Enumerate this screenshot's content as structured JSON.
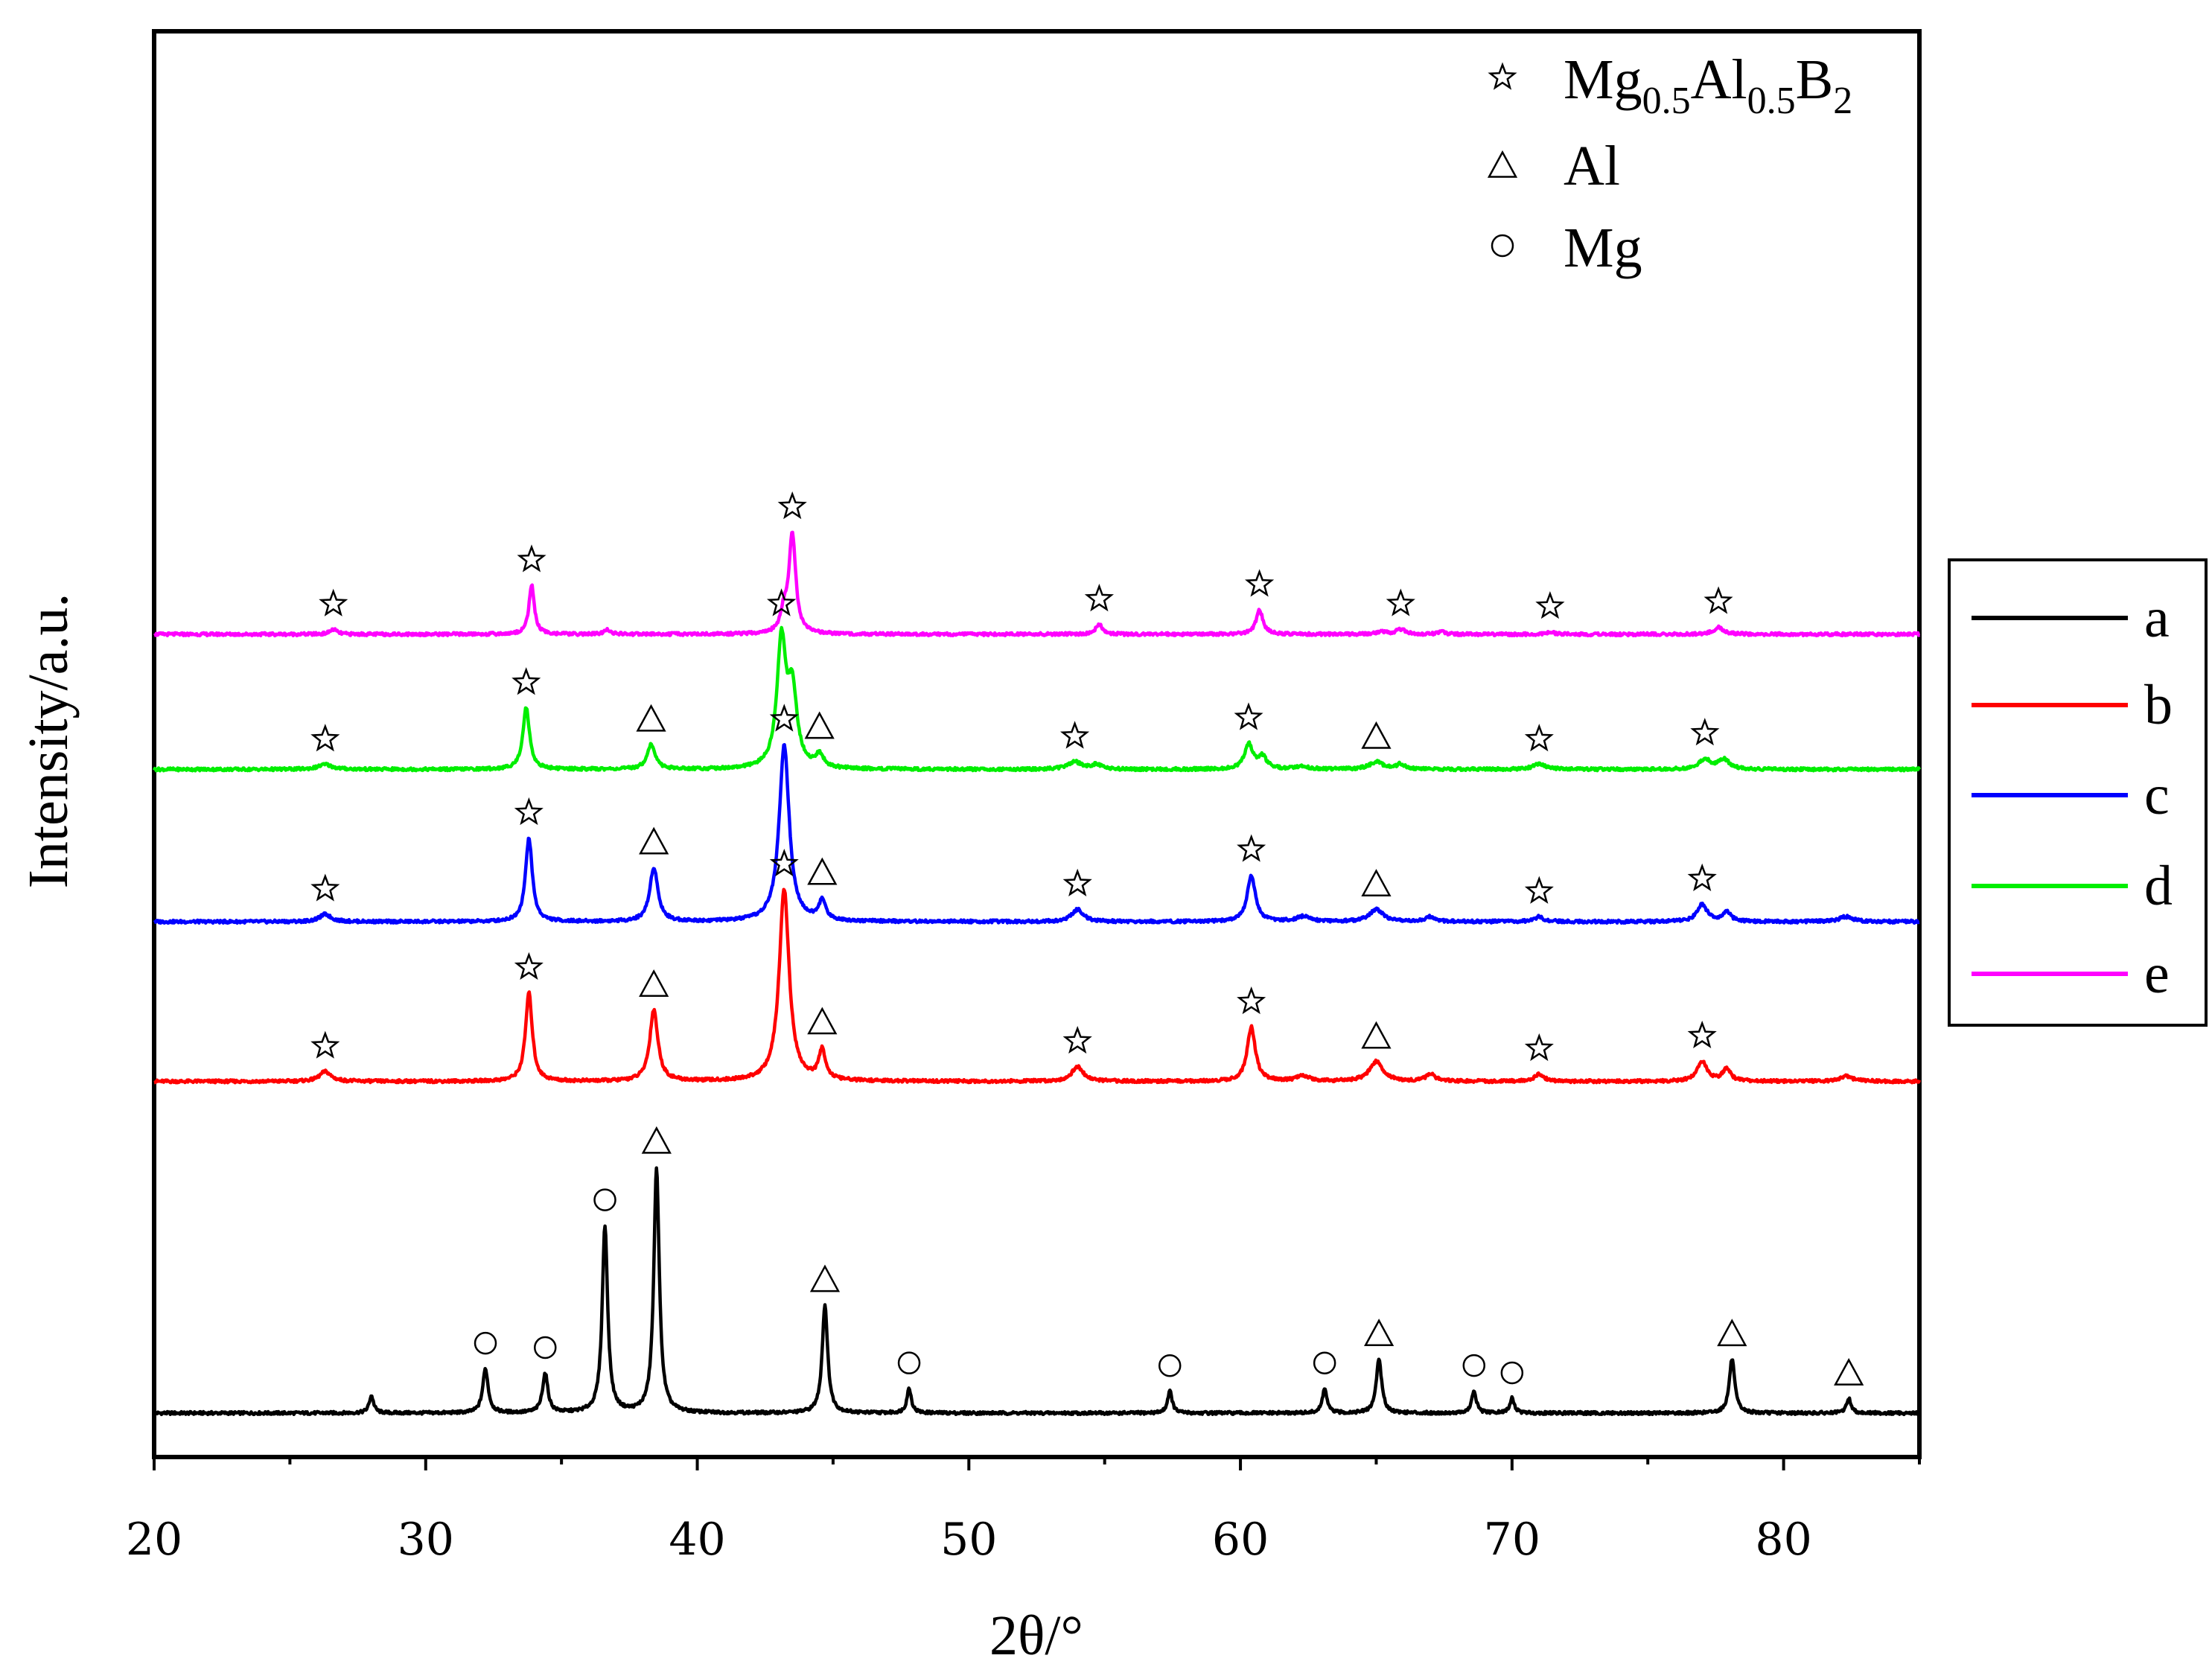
{
  "chart_data": {
    "type": "line",
    "xlabel": "2θ/°",
    "ylabel": "Intensity/a.u.",
    "xlim": [
      20,
      85
    ],
    "xticks": [
      20,
      30,
      40,
      50,
      60,
      70,
      80
    ],
    "grid": false,
    "legend": {
      "placement": "right",
      "entries": [
        {
          "name": "a",
          "color": "#000000"
        },
        {
          "name": "b",
          "color": "#ff0000"
        },
        {
          "name": "c",
          "color": "#0000ff"
        },
        {
          "name": "d",
          "color": "#00ee00"
        },
        {
          "name": "e",
          "color": "#ff00ff"
        }
      ]
    },
    "phase_legend": {
      "placement": "top-right",
      "entries": [
        {
          "symbol": "star",
          "label_main": "Mg",
          "label_sub1": "0.5",
          "label_mid": "Al",
          "label_sub2": "0.5",
          "label_end": "B",
          "label_sub3": "2"
        },
        {
          "symbol": "triangle",
          "label": "Al"
        },
        {
          "symbol": "circle",
          "label": "Mg"
        }
      ]
    },
    "series": [
      {
        "name": "a",
        "color": "#000000",
        "baseline": 0.0,
        "peaks": [
          {
            "x": 28.0,
            "h": 0.07,
            "w": 0.1
          },
          {
            "x": 32.2,
            "h": 0.18,
            "w": 0.12,
            "marker": "circle"
          },
          {
            "x": 34.4,
            "h": 0.16,
            "w": 0.12,
            "marker": "circle"
          },
          {
            "x": 36.6,
            "h": 0.76,
            "w": 0.12,
            "marker": "circle"
          },
          {
            "x": 38.5,
            "h": 1.0,
            "w": 0.12,
            "marker": "triangle"
          },
          {
            "x": 44.7,
            "h": 0.44,
            "w": 0.12,
            "marker": "triangle"
          },
          {
            "x": 47.8,
            "h": 0.1,
            "w": 0.1,
            "marker": "circle"
          },
          {
            "x": 57.4,
            "h": 0.09,
            "w": 0.1,
            "marker": "circle"
          },
          {
            "x": 63.1,
            "h": 0.1,
            "w": 0.1,
            "marker": "circle"
          },
          {
            "x": 65.1,
            "h": 0.22,
            "w": 0.12,
            "marker": "triangle"
          },
          {
            "x": 68.6,
            "h": 0.09,
            "w": 0.1,
            "marker": "circle"
          },
          {
            "x": 70.0,
            "h": 0.06,
            "w": 0.1,
            "marker": "circle"
          },
          {
            "x": 78.1,
            "h": 0.22,
            "w": 0.12,
            "marker": "triangle"
          },
          {
            "x": 82.4,
            "h": 0.06,
            "w": 0.1,
            "marker": "triangle"
          }
        ]
      },
      {
        "name": "b",
        "color": "#ff0000",
        "baseline": 1.35,
        "peaks": [
          {
            "x": 26.3,
            "h": 0.04,
            "w": 0.25,
            "marker": "star"
          },
          {
            "x": 33.8,
            "h": 0.36,
            "w": 0.15,
            "marker": "star"
          },
          {
            "x": 38.4,
            "h": 0.29,
            "w": 0.18,
            "marker": "triangle"
          },
          {
            "x": 43.2,
            "h": 0.78,
            "w": 0.22,
            "marker": "star"
          },
          {
            "x": 44.6,
            "h": 0.12,
            "w": 0.15,
            "marker": "triangle"
          },
          {
            "x": 54.0,
            "h": 0.06,
            "w": 0.25,
            "marker": "star"
          },
          {
            "x": 60.4,
            "h": 0.22,
            "w": 0.18,
            "marker": "star"
          },
          {
            "x": 62.3,
            "h": 0.02,
            "w": 0.3
          },
          {
            "x": 65.0,
            "h": 0.08,
            "w": 0.3,
            "marker": "triangle"
          },
          {
            "x": 67.0,
            "h": 0.03,
            "w": 0.2
          },
          {
            "x": 71.0,
            "h": 0.03,
            "w": 0.2,
            "marker": "star"
          },
          {
            "x": 77.0,
            "h": 0.08,
            "w": 0.22,
            "marker": "star"
          },
          {
            "x": 77.9,
            "h": 0.05,
            "w": 0.18
          },
          {
            "x": 82.3,
            "h": 0.02,
            "w": 0.3
          }
        ]
      },
      {
        "name": "c",
        "color": "#0000ff",
        "baseline": 2.0,
        "peaks": [
          {
            "x": 26.3,
            "h": 0.03,
            "w": 0.25,
            "marker": "star"
          },
          {
            "x": 33.8,
            "h": 0.34,
            "w": 0.15,
            "marker": "star"
          },
          {
            "x": 38.4,
            "h": 0.22,
            "w": 0.18,
            "marker": "triangle"
          },
          {
            "x": 43.2,
            "h": 0.72,
            "w": 0.22,
            "marker": "star"
          },
          {
            "x": 44.6,
            "h": 0.08,
            "w": 0.15,
            "marker": "triangle"
          },
          {
            "x": 54.0,
            "h": 0.05,
            "w": 0.25,
            "marker": "star"
          },
          {
            "x": 60.4,
            "h": 0.19,
            "w": 0.18,
            "marker": "star"
          },
          {
            "x": 62.3,
            "h": 0.02,
            "w": 0.3
          },
          {
            "x": 65.0,
            "h": 0.05,
            "w": 0.3,
            "marker": "triangle"
          },
          {
            "x": 67.0,
            "h": 0.02,
            "w": 0.2
          },
          {
            "x": 71.0,
            "h": 0.02,
            "w": 0.2,
            "marker": "star"
          },
          {
            "x": 77.0,
            "h": 0.07,
            "w": 0.22,
            "marker": "star"
          },
          {
            "x": 77.9,
            "h": 0.04,
            "w": 0.18
          },
          {
            "x": 82.3,
            "h": 0.02,
            "w": 0.3
          }
        ]
      },
      {
        "name": "d",
        "color": "#00ee00",
        "baseline": 2.62,
        "peaks": [
          {
            "x": 26.3,
            "h": 0.02,
            "w": 0.3,
            "marker": "star"
          },
          {
            "x": 33.7,
            "h": 0.25,
            "w": 0.15,
            "marker": "star"
          },
          {
            "x": 38.3,
            "h": 0.1,
            "w": 0.18,
            "marker": "triangle"
          },
          {
            "x": 43.1,
            "h": 0.51,
            "w": 0.2,
            "marker": "star"
          },
          {
            "x": 43.5,
            "h": 0.3,
            "w": 0.2
          },
          {
            "x": 44.5,
            "h": 0.05,
            "w": 0.18,
            "marker": "triangle"
          },
          {
            "x": 53.9,
            "h": 0.03,
            "w": 0.3,
            "marker": "star"
          },
          {
            "x": 54.7,
            "h": 0.02,
            "w": 0.2
          },
          {
            "x": 60.3,
            "h": 0.1,
            "w": 0.18,
            "marker": "star"
          },
          {
            "x": 60.8,
            "h": 0.05,
            "w": 0.2
          },
          {
            "x": 62.3,
            "h": 0.01,
            "w": 0.3
          },
          {
            "x": 65.0,
            "h": 0.03,
            "w": 0.3,
            "marker": "triangle"
          },
          {
            "x": 65.9,
            "h": 0.02,
            "w": 0.2
          },
          {
            "x": 71.0,
            "h": 0.02,
            "w": 0.3,
            "marker": "star"
          },
          {
            "x": 77.1,
            "h": 0.04,
            "w": 0.25,
            "marker": "star"
          },
          {
            "x": 77.8,
            "h": 0.04,
            "w": 0.25
          }
        ]
      },
      {
        "name": "e",
        "color": "#ff00ff",
        "baseline": 3.17,
        "peaks": [
          {
            "x": 26.6,
            "h": 0.02,
            "w": 0.15,
            "marker": "star"
          },
          {
            "x": 33.9,
            "h": 0.2,
            "w": 0.12,
            "marker": "star"
          },
          {
            "x": 36.7,
            "h": 0.02,
            "w": 0.12
          },
          {
            "x": 43.2,
            "h": 0.08,
            "w": 0.15
          },
          {
            "x": 43.5,
            "h": 0.4,
            "w": 0.15,
            "marker": "star"
          },
          {
            "x": 54.8,
            "h": 0.04,
            "w": 0.15,
            "marker": "star"
          },
          {
            "x": 60.7,
            "h": 0.1,
            "w": 0.15,
            "marker": "star"
          },
          {
            "x": 65.2,
            "h": 0.01,
            "w": 0.2
          },
          {
            "x": 65.9,
            "h": 0.02,
            "w": 0.2,
            "marker": "star"
          },
          {
            "x": 67.4,
            "h": 0.01,
            "w": 0.15
          },
          {
            "x": 71.4,
            "h": 0.01,
            "w": 0.15,
            "marker": "star"
          },
          {
            "x": 77.6,
            "h": 0.03,
            "w": 0.2,
            "marker": "star"
          }
        ]
      }
    ]
  }
}
